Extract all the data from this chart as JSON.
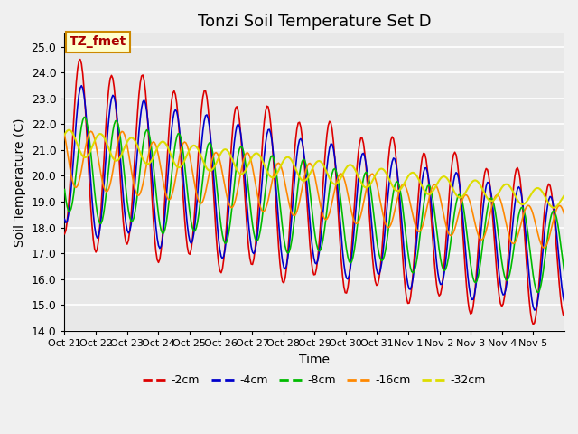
{
  "title": "Tonzi Soil Temperature Set D",
  "xlabel": "Time",
  "ylabel": "Soil Temperature (C)",
  "ylim": [
    14.0,
    25.5
  ],
  "yticks": [
    14.0,
    15.0,
    16.0,
    17.0,
    18.0,
    19.0,
    20.0,
    21.0,
    22.0,
    23.0,
    24.0,
    25.0
  ],
  "xtick_labels": [
    "Oct 21",
    "Oct 22",
    "Oct 23",
    "Oct 24",
    "Oct 25",
    "Oct 26",
    "Oct 27",
    "Oct 28",
    "Oct 29",
    "Oct 30",
    "Oct 31",
    "Nov 1",
    "Nov 2",
    "Nov 3",
    "Nov 4",
    "Nov 5"
  ],
  "colors": {
    "-2cm": "#dd0000",
    "-4cm": "#0000cc",
    "-8cm": "#00bb00",
    "-16cm": "#ff8800",
    "-32cm": "#dddd00"
  },
  "legend_labels": [
    "-2cm",
    "-4cm",
    "-8cm",
    "-16cm",
    "-32cm"
  ],
  "legend_colors": [
    "#dd0000",
    "#0000cc",
    "#00bb00",
    "#ff8800",
    "#dddd00"
  ],
  "annotation_text": "TZ_fmet",
  "annotation_color": "#cc8800",
  "annotation_bg": "#ffffcc",
  "plot_bg": "#e8e8e8",
  "title_fontsize": 13,
  "axis_fontsize": 10,
  "tick_fontsize": 9
}
